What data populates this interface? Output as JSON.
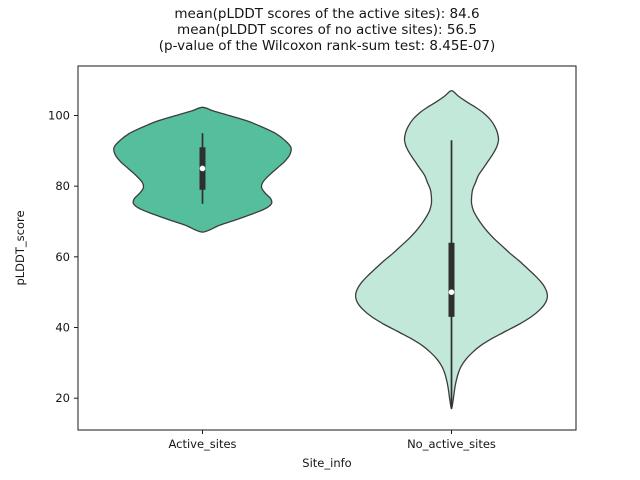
{
  "chart_data": {
    "type": "violin",
    "title_lines": [
      "mean(pLDDT scores of the active sites): 84.6",
      "mean(pLDDT scores of no active sites): 56.5",
      "(p-value of the Wilcoxon rank-sum test: 8.45E-07)"
    ],
    "xlabel": "Site_info",
    "ylabel": "pLDDT_score",
    "categories": [
      "Active_sites",
      "No_active_sites"
    ],
    "yticks": [
      20,
      40,
      60,
      80,
      100
    ],
    "ylim": [
      11,
      114
    ],
    "xlim": [
      -0.5,
      1.5
    ],
    "legend": "none",
    "grid": false,
    "stats": {
      "active_sites_mean": 84.6,
      "no_active_sites_mean": 56.5,
      "wilcoxon_rank_sum_p_value": "8.45E-07"
    },
    "inner_box_color": "#2f2f2f",
    "median_dot_color": "#ffffff",
    "axes_color": "#1a1a1a",
    "series": [
      {
        "name": "Active_sites",
        "x": 0,
        "fill": "#55bf9d",
        "edge": "#3c3c3c",
        "width": 0.71,
        "data_range": [
          67,
          102
        ],
        "box": {
          "low": 75,
          "q1": 79,
          "median": 85,
          "q3": 91,
          "high": 95
        },
        "profile": [
          [
            102.3,
            0.0
          ],
          [
            101.3,
            0.12
          ],
          [
            100,
            0.3
          ],
          [
            98.5,
            0.5
          ],
          [
            97,
            0.65
          ],
          [
            95,
            0.82
          ],
          [
            93,
            0.93
          ],
          [
            91,
            1.0
          ],
          [
            89,
            0.99
          ],
          [
            87,
            0.93
          ],
          [
            85,
            0.84
          ],
          [
            83,
            0.75
          ],
          [
            81,
            0.68
          ],
          [
            79.5,
            0.67
          ],
          [
            78,
            0.71
          ],
          [
            76.5,
            0.77
          ],
          [
            75,
            0.78
          ],
          [
            73.5,
            0.7
          ],
          [
            72,
            0.55
          ],
          [
            70.5,
            0.38
          ],
          [
            69,
            0.2
          ],
          [
            67.5,
            0.07
          ],
          [
            67,
            0.0
          ]
        ]
      },
      {
        "name": "No_active_sites",
        "x": 1,
        "fill": "#c2e8da",
        "edge": "#3c3c3c",
        "width": 0.77,
        "data_range": [
          17,
          107
        ],
        "box": {
          "low": 17,
          "q1": 43,
          "median": 50,
          "q3": 64,
          "high": 93
        },
        "profile": [
          [
            107,
            0.0
          ],
          [
            105.5,
            0.07
          ],
          [
            104,
            0.15
          ],
          [
            102.5,
            0.24
          ],
          [
            101,
            0.32
          ],
          [
            99,
            0.4
          ],
          [
            97,
            0.45
          ],
          [
            95,
            0.48
          ],
          [
            93,
            0.49
          ],
          [
            91,
            0.47
          ],
          [
            89,
            0.43
          ],
          [
            87,
            0.38
          ],
          [
            85,
            0.33
          ],
          [
            83,
            0.28
          ],
          [
            81,
            0.25
          ],
          [
            79,
            0.22
          ],
          [
            77,
            0.21
          ],
          [
            75,
            0.21
          ],
          [
            73,
            0.23
          ],
          [
            71,
            0.27
          ],
          [
            69,
            0.32
          ],
          [
            67,
            0.38
          ],
          [
            65,
            0.45
          ],
          [
            63,
            0.53
          ],
          [
            61,
            0.61
          ],
          [
            59,
            0.7
          ],
          [
            57,
            0.78
          ],
          [
            55,
            0.86
          ],
          [
            53,
            0.93
          ],
          [
            51,
            0.98
          ],
          [
            49,
            1.0
          ],
          [
            47,
            0.98
          ],
          [
            45,
            0.92
          ],
          [
            43,
            0.83
          ],
          [
            41,
            0.71
          ],
          [
            39,
            0.57
          ],
          [
            37,
            0.43
          ],
          [
            35,
            0.31
          ],
          [
            33,
            0.22
          ],
          [
            31,
            0.15
          ],
          [
            29,
            0.1
          ],
          [
            27,
            0.07
          ],
          [
            25,
            0.05
          ],
          [
            23,
            0.035
          ],
          [
            21,
            0.025
          ],
          [
            19,
            0.015
          ],
          [
            17,
            0.0
          ]
        ]
      }
    ]
  }
}
